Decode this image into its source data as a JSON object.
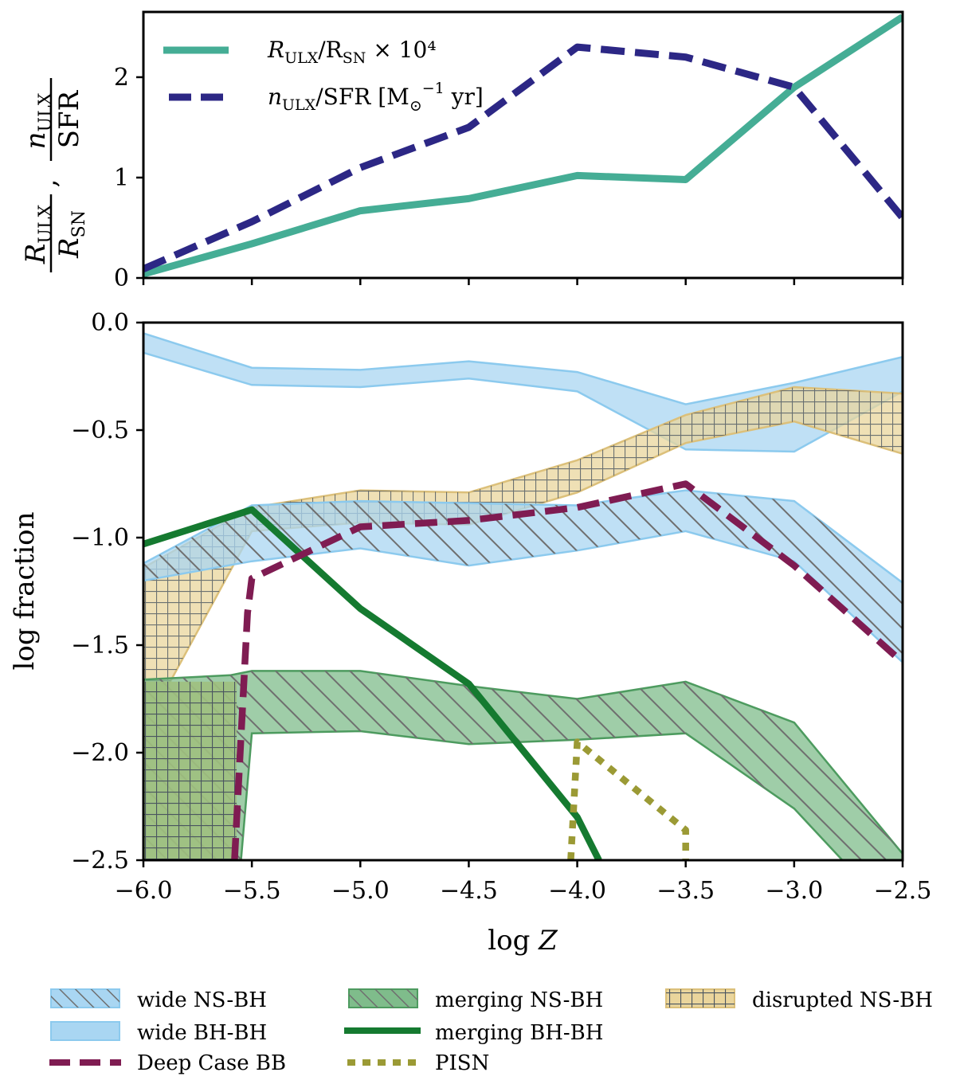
{
  "chart_data": [
    {
      "type": "line",
      "x": [
        -6.0,
        -5.5,
        -5.0,
        -4.5,
        -4.0,
        -3.5,
        -3.0,
        -2.5
      ],
      "xlim": [
        -6.0,
        -2.5
      ],
      "ylim": [
        0,
        2.65
      ],
      "yticks": [
        0,
        1,
        2
      ],
      "ylabel": "R_ULX / R_SN , n_ULX / SFR",
      "series": [
        {
          "name": "R_ULX/R_SN × 10^4",
          "color": "#45ad95",
          "style": "solid",
          "values": [
            0.04,
            0.34,
            0.67,
            0.79,
            1.02,
            0.98,
            1.9,
            2.6
          ]
        },
        {
          "name": "n_ULX/SFR [M_sun^-1 yr]",
          "color": "#2c2785",
          "style": "dashed",
          "values": [
            0.09,
            0.56,
            1.1,
            1.5,
            2.3,
            2.2,
            1.9,
            0.6
          ]
        }
      ],
      "legend": {
        "solid_prefix": "R",
        "solid_sub1": "ULX",
        "solid_mid": "/R",
        "solid_sub2": "SN",
        "solid_suffix": " × 10⁴",
        "dashed_prefix": "n",
        "dashed_sub": "ULX",
        "dashed_mid": "/SFR [M",
        "dashed_sun": "⊙",
        "dashed_sup": "−1",
        "dashed_suffix": " yr]"
      },
      "ylabel_parts": {
        "num1": "R",
        "num1_sub": "ULX",
        "den1": "R",
        "den1_sub": "SN",
        "num2": "n",
        "num2_sub": "ULX",
        "den2": "SFR",
        "comma": ","
      }
    },
    {
      "type": "area",
      "x": [
        -6.0,
        -5.5,
        -5.0,
        -4.5,
        -4.0,
        -3.5,
        -3.0,
        -2.5
      ],
      "xlim": [
        -6.0,
        -2.5
      ],
      "ylim": [
        -2.5,
        0.0
      ],
      "xticks": [
        -6.0,
        -5.5,
        -5.0,
        -4.5,
        -4.0,
        -3.5,
        -3.0,
        -2.5
      ],
      "yticks": [
        0.0,
        -0.5,
        -1.0,
        -1.5,
        -2.0,
        -2.5
      ],
      "xlabel": "log Z",
      "ylabel": "log fraction",
      "bands": [
        {
          "name": "wide BH-BH",
          "fill": "#a9d6f2",
          "edge": "#8ccaee",
          "hatch": "none",
          "x": [
            -6.0,
            -5.5,
            -5.0,
            -4.5,
            -4.0,
            -3.5,
            -3.0,
            -2.5
          ],
          "upper": [
            -0.05,
            -0.21,
            -0.22,
            -0.18,
            -0.23,
            -0.38,
            -0.28,
            -0.16
          ],
          "lower": [
            -0.14,
            -0.29,
            -0.3,
            -0.26,
            -0.32,
            -0.59,
            -0.6,
            -0.32
          ]
        },
        {
          "name": "disrupted NS-BH",
          "fill": "#ead59c",
          "edge": "#dcc07a",
          "hatch": "grid",
          "x": [
            -6.0,
            -5.5,
            -5.0,
            -4.5,
            -4.0,
            -3.5,
            -3.0,
            -2.5
          ],
          "upper": [
            -1.14,
            -0.86,
            -0.78,
            -0.79,
            -0.64,
            -0.43,
            -0.3,
            -0.33
          ],
          "lower": [
            -1.9,
            -0.97,
            -0.93,
            -0.94,
            -0.79,
            -0.56,
            -0.46,
            -0.61
          ]
        },
        {
          "name": "wide NS-BH",
          "fill": "#a9d6f2",
          "edge": "#8ccaee",
          "hatch": "diag",
          "x": [
            -6.0,
            -5.5,
            -5.0,
            -4.5,
            -4.0,
            -3.5,
            -3.0,
            -2.5
          ],
          "upper": [
            -1.12,
            -0.85,
            -0.83,
            -0.84,
            -0.85,
            -0.78,
            -0.83,
            -1.21
          ],
          "lower": [
            -1.2,
            -1.11,
            -1.05,
            -1.13,
            -1.06,
            -0.97,
            -1.11,
            -1.58
          ]
        },
        {
          "name": "merging NS-BH",
          "fill": "#7fbc8b",
          "edge": "#4d9b5f",
          "hatch": "diag",
          "x": [
            -6.0,
            -5.6,
            -5.55,
            -5.5,
            -5.0,
            -4.5,
            -4.0,
            -3.5,
            -3.0,
            -2.5
          ],
          "upper": [
            -1.66,
            -1.64,
            -1.63,
            -1.62,
            -1.62,
            -1.69,
            -1.75,
            -1.67,
            -1.86,
            -2.47
          ],
          "lower": [
            -2.5,
            -2.5,
            -2.5,
            -1.91,
            -1.9,
            -1.96,
            -1.94,
            -1.91,
            -2.26,
            -2.8
          ]
        }
      ],
      "left_block": {
        "x0": -6.0,
        "x1": -5.57,
        "top": -1.67,
        "bottom": -2.5,
        "fill": "#9fc07e"
      },
      "lines": [
        {
          "name": "merging BH-BH",
          "color": "#157a30",
          "style": "solid",
          "x": [
            -6.0,
            -5.5,
            -5.0,
            -4.5,
            -4.0,
            -3.9
          ],
          "values": [
            -1.03,
            -0.87,
            -1.33,
            -1.68,
            -2.3,
            -2.5
          ]
        },
        {
          "name": "Deep Case BB",
          "color": "#7f1c52",
          "style": "dashed",
          "x": [
            -5.58,
            -5.52,
            -5.5,
            -5.0,
            -4.5,
            -4.0,
            -3.5,
            -3.0,
            -2.5
          ],
          "values": [
            -2.5,
            -1.35,
            -1.19,
            -0.95,
            -0.92,
            -0.86,
            -0.75,
            -1.13,
            -1.58
          ]
        },
        {
          "name": "PISN",
          "color": "#9b9a35",
          "style": "dotted",
          "x": [
            -4.03,
            -4.0,
            -3.5,
            -3.5
          ],
          "values": [
            -2.5,
            -1.95,
            -2.36,
            -2.5
          ]
        }
      ]
    }
  ],
  "legend": {
    "col1": [
      "wide NS-BH",
      "wide BH-BH",
      "Deep Case BB"
    ],
    "col2": [
      "merging NS-BH",
      "merging BH-BH",
      "PISN"
    ],
    "col3": [
      "disrupted NS-BH"
    ]
  },
  "axis": {
    "top_yticks": [
      "0",
      "1",
      "2"
    ],
    "bottom_yticks": [
      "0.0",
      "−0.5",
      "−1.0",
      "−1.5",
      "−2.0",
      "−2.5"
    ],
    "xticks": [
      "−6.0",
      "−5.5",
      "−5.0",
      "−4.5",
      "−4.0",
      "−3.5",
      "−3.0",
      "−2.5"
    ],
    "xlabel_log": "log",
    "xlabel_var": "Z",
    "ylabel_bottom": "log fraction"
  }
}
